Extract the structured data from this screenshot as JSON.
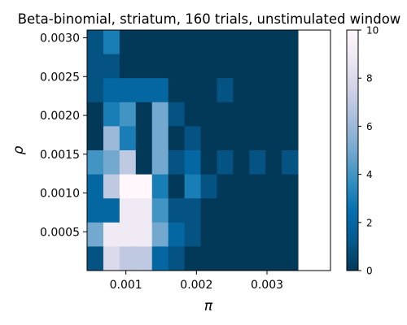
{
  "chart_data": {
    "type": "heatmap",
    "title": "Beta-binomial, striatum, 160 trials, unstimulated window",
    "xlabel": "π",
    "ylabel": "ρ",
    "x_range": [
      0.00045,
      0.0039
    ],
    "y_range": [
      0.0,
      0.0031
    ],
    "x_bin_width": 0.00023,
    "y_bin_height": 0.00031,
    "x_ticks": [
      0.001,
      0.002,
      0.003
    ],
    "x_tick_labels": [
      "0.001",
      "0.002",
      "0.003"
    ],
    "y_ticks": [
      0.0005,
      0.001,
      0.0015,
      0.002,
      0.0025,
      0.003
    ],
    "y_tick_labels": [
      "0.0005",
      "0.0010",
      "0.0015",
      "0.0020",
      "0.0025",
      "0.0030"
    ],
    "colorbar": {
      "min": 0,
      "max": 10,
      "ticks": [
        0,
        2,
        4,
        6,
        8,
        10
      ],
      "tick_labels": [
        "0",
        "2",
        "4",
        "6",
        "8",
        "10"
      ],
      "colormap": "PuBu_r",
      "colors": [
        "#023858",
        "#045a8d",
        "#0570b0",
        "#3690c0",
        "#74a9cf",
        "#a6bddb",
        "#d0d1e6",
        "#ece7f2",
        "#fff7fb"
      ]
    },
    "grid": false,
    "rows_top_to_bottom": [
      [
        1,
        3,
        0,
        0,
        0,
        0,
        0,
        0,
        0,
        0,
        0,
        0,
        0
      ],
      [
        1,
        1,
        0,
        0,
        0,
        0,
        0,
        0,
        0,
        0,
        0,
        0,
        0
      ],
      [
        1,
        2,
        2,
        2,
        2,
        0,
        0,
        0,
        1,
        0,
        0,
        0,
        0
      ],
      [
        0,
        3,
        4,
        0,
        5,
        1,
        0,
        0,
        0,
        0,
        0,
        0,
        0
      ],
      [
        0,
        6,
        3,
        0,
        5,
        0,
        1,
        0,
        0,
        0,
        0,
        0,
        0
      ],
      [
        4,
        5,
        7,
        0,
        5,
        1,
        2,
        0,
        1,
        0,
        1,
        0,
        1
      ],
      [
        2,
        7,
        10,
        10,
        3,
        0,
        3,
        1,
        0,
        0,
        0,
        0,
        0
      ],
      [
        2,
        2,
        9,
        9,
        4,
        1,
        1,
        0,
        0,
        0,
        0,
        0,
        0
      ],
      [
        5,
        9,
        9,
        9,
        5,
        2,
        1,
        0,
        0,
        0,
        0,
        0,
        0
      ],
      [
        1,
        8,
        7,
        7,
        2,
        1,
        0,
        0,
        0,
        0,
        0,
        0,
        0
      ]
    ]
  }
}
